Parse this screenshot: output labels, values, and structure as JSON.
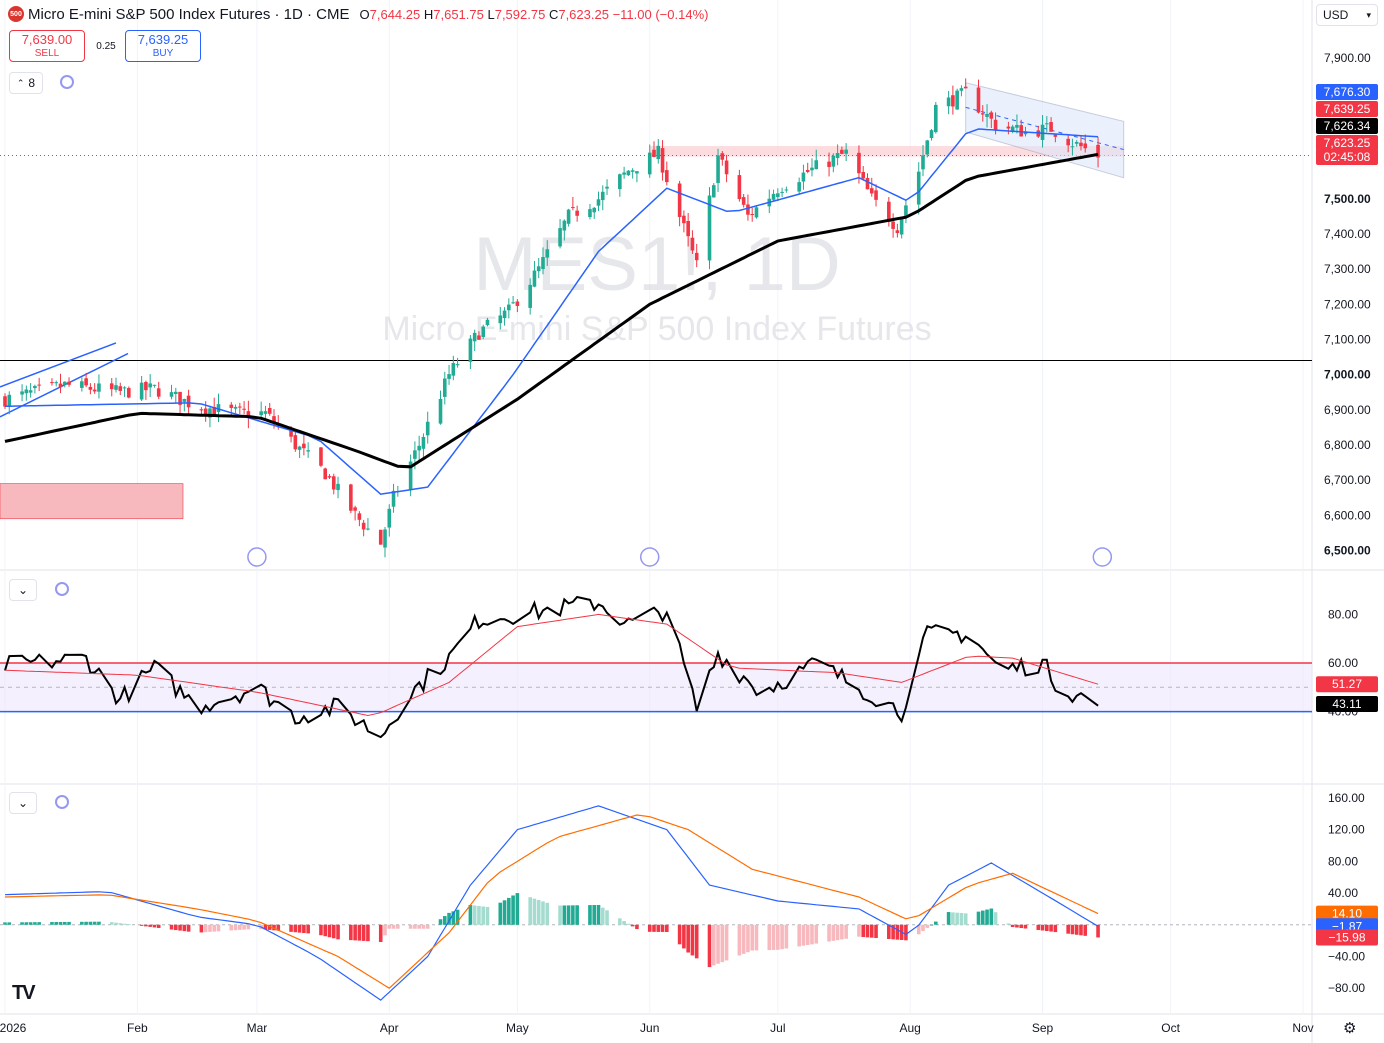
{
  "header": {
    "symbol_badge": "500",
    "title": "Micro E-mini S&P 500 Index Futures · 1D · CME",
    "open_label": "O",
    "open": "7,644.25",
    "high_label": "H",
    "high": "7,651.75",
    "low_label": "L",
    "low": "7,592.75",
    "close_label": "C",
    "close": "7,623.25",
    "change": "−11.00 (−0.14%)"
  },
  "trade": {
    "sell_price": "7,639.00",
    "sell_label": "SELL",
    "spread": "0.25",
    "buy_price": "7,639.25",
    "buy_label": "BUY"
  },
  "controls": {
    "indicator_count": "8",
    "chevron": "⌄"
  },
  "currency": "USD",
  "watermark": {
    "ticker": "MES1!, 1D",
    "name": "Micro E-mini S&P 500 Index Futures"
  },
  "price_axis": {
    "ticks": [
      "7,900.00",
      "7,800.00",
      "7,500.00",
      "7,400.00",
      "7,300.00",
      "7,200.00",
      "7,100.00",
      "7,000.00",
      "6,900.00",
      "6,800.00",
      "6,700.00",
      "6,600.00",
      "6,500.00"
    ],
    "tick_values": [
      7900,
      7800,
      7500,
      7400,
      7300,
      7200,
      7100,
      7000,
      6900,
      6800,
      6700,
      6600,
      6500
    ],
    "bold_ticks": [
      7000,
      7500,
      6500
    ],
    "labels": [
      {
        "text": "7,676.30",
        "color": "#2962ff",
        "value": 7676.3
      },
      {
        "text": "7,639.25",
        "color": "#f23645",
        "value": 7639.25
      },
      {
        "text": "7,626.34",
        "color": "#000000",
        "value": 7626.34
      },
      {
        "text": "7,623.25",
        "color": "#f23645",
        "value": 7623.25
      },
      {
        "text": "02:45:08",
        "color": "#f23645",
        "value": 7623.25
      }
    ]
  },
  "rsi_axis": {
    "ticks": [
      "80.00",
      "60.00",
      "40.00"
    ],
    "tick_values": [
      80,
      60,
      40
    ],
    "labels": [
      {
        "text": "51.27",
        "color": "#f23645",
        "value": 51.27
      },
      {
        "text": "43.11",
        "color": "#000000",
        "value": 43.11
      }
    ]
  },
  "macd_axis": {
    "ticks": [
      "160.00",
      "120.00",
      "80.00",
      "40.00",
      "−40.00",
      "−80.00"
    ],
    "tick_values": [
      160,
      120,
      80,
      40,
      -40,
      -80
    ],
    "labels": [
      {
        "text": "14.10",
        "color": "#ff6d00",
        "value": 14.1
      },
      {
        "text": "−1.87",
        "color": "#2962ff",
        "value": -1.87
      },
      {
        "text": "−15.98",
        "color": "#f23645",
        "value": -15.98
      }
    ]
  },
  "time_axis": {
    "labels": [
      "2026",
      "Feb",
      "Mar",
      "Apr",
      "May",
      "Jun",
      "Jul",
      "Aug",
      "Sep",
      "Oct",
      "Nov"
    ]
  },
  "colors": {
    "up": "#22ab94",
    "down": "#f23645",
    "ma_fast": "#2962ff",
    "ma_slow": "#000000",
    "rsi": "#000000",
    "rsi_ma": "#f23645",
    "macd": "#2962ff",
    "signal": "#ff6d00"
  },
  "chart_data": [
    {
      "type": "candlestick",
      "title": "Micro E-mini S&P 500 Index Futures · 1D · CME",
      "x_range": [
        "2026-01-01",
        "2026-11-01"
      ],
      "ylim": [
        6450,
        7980
      ],
      "anchors": [
        {
          "date": "2026-01-01",
          "close": 6930
        },
        {
          "date": "2026-01-15",
          "close": 6970
        },
        {
          "date": "2026-01-28",
          "close": 6950
        },
        {
          "date": "2026-02-05",
          "close": 6960
        },
        {
          "date": "2026-02-15",
          "close": 6910
        },
        {
          "date": "2026-02-25",
          "close": 6890
        },
        {
          "date": "2026-03-03",
          "close": 6890
        },
        {
          "date": "2026-03-10",
          "close": 6800
        },
        {
          "date": "2026-03-17",
          "close": 6720
        },
        {
          "date": "2026-03-24",
          "close": 6600
        },
        {
          "date": "2026-03-30",
          "close": 6520
        },
        {
          "date": "2026-04-02",
          "close": 6650
        },
        {
          "date": "2026-04-08",
          "close": 6800
        },
        {
          "date": "2026-04-15",
          "close": 7000
        },
        {
          "date": "2026-04-22",
          "close": 7120
        },
        {
          "date": "2026-04-29",
          "close": 7180
        },
        {
          "date": "2026-05-06",
          "close": 7300
        },
        {
          "date": "2026-05-13",
          "close": 7450
        },
        {
          "date": "2026-05-20",
          "close": 7500
        },
        {
          "date": "2026-05-27",
          "close": 7580
        },
        {
          "date": "2026-06-03",
          "close": 7630
        },
        {
          "date": "2026-06-08",
          "close": 7450
        },
        {
          "date": "2026-06-12",
          "close": 7310
        },
        {
          "date": "2026-06-17",
          "close": 7620
        },
        {
          "date": "2026-06-24",
          "close": 7450
        },
        {
          "date": "2026-07-01",
          "close": 7530
        },
        {
          "date": "2026-07-10",
          "close": 7590
        },
        {
          "date": "2026-07-17",
          "close": 7630
        },
        {
          "date": "2026-07-23",
          "close": 7500
        },
        {
          "date": "2026-07-29",
          "close": 7420
        },
        {
          "date": "2026-08-03",
          "close": 7580
        },
        {
          "date": "2026-08-07",
          "close": 7760
        },
        {
          "date": "2026-08-14",
          "close": 7800
        },
        {
          "date": "2026-08-21",
          "close": 7710
        },
        {
          "date": "2026-08-28",
          "close": 7690
        },
        {
          "date": "2026-09-03",
          "close": 7700
        },
        {
          "date": "2026-09-08",
          "close": 7660
        },
        {
          "date": "2026-09-14",
          "close": 7623.25
        }
      ],
      "moving_averages": [
        {
          "color": "#2962ff",
          "anchors": [
            [
              "2026-01-01",
              6910
            ],
            [
              "2026-02-15",
              6920
            ],
            [
              "2026-03-15",
              6820
            ],
            [
              "2026-03-30",
              6660
            ],
            [
              "2026-04-10",
              6680
            ],
            [
              "2026-04-30",
              7000
            ],
            [
              "2026-05-20",
              7350
            ],
            [
              "2026-06-05",
              7530
            ],
            [
              "2026-06-20",
              7460
            ],
            [
              "2026-07-20",
              7560
            ],
            [
              "2026-08-01",
              7490
            ],
            [
              "2026-08-15",
              7700
            ],
            [
              "2026-09-14",
              7676.3
            ]
          ]
        },
        {
          "color": "#000000",
          "anchors": [
            [
              "2026-01-01",
              6810
            ],
            [
              "2026-02-01",
              6890
            ],
            [
              "2026-03-01",
              6880
            ],
            [
              "2026-03-25",
              6780
            ],
            [
              "2026-04-05",
              6730
            ],
            [
              "2026-05-01",
              6930
            ],
            [
              "2026-06-01",
              7200
            ],
            [
              "2026-07-01",
              7380
            ],
            [
              "2026-08-01",
              7450
            ],
            [
              "2026-08-15",
              7560
            ],
            [
              "2026-09-14",
              7626.34
            ]
          ]
        }
      ],
      "horizontal_line": 7040,
      "resistance_zone": [
        7620,
        7650
      ],
      "demand_zone": [
        6590,
        6690
      ]
    },
    {
      "type": "line",
      "title": "RSI",
      "ylim": [
        25,
        95
      ],
      "bands": [
        40,
        60
      ],
      "series": [
        {
          "color": "#000000",
          "anchors": [
            [
              "2026-01-01",
              59
            ],
            [
              "2026-01-20",
              62
            ],
            [
              "2026-01-28",
              45
            ],
            [
              "2026-02-05",
              58
            ],
            [
              "2026-02-15",
              42
            ],
            [
              "2026-03-01",
              50
            ],
            [
              "2026-03-10",
              38
            ],
            [
              "2026-03-20",
              42
            ],
            [
              "2026-03-30",
              30
            ],
            [
              "2026-04-05",
              46
            ],
            [
              "2026-04-15",
              62
            ],
            [
              "2026-04-22",
              78
            ],
            [
              "2026-05-05",
              81
            ],
            [
              "2026-05-20",
              85
            ],
            [
              "2026-05-27",
              76
            ],
            [
              "2026-06-05",
              82
            ],
            [
              "2026-06-12",
              41
            ],
            [
              "2026-06-17",
              64
            ],
            [
              "2026-06-27",
              48
            ],
            [
              "2026-07-10",
              60
            ],
            [
              "2026-07-20",
              50
            ],
            [
              "2026-07-30",
              40
            ],
            [
              "2026-08-05",
              72
            ],
            [
              "2026-08-15",
              72
            ],
            [
              "2026-08-22",
              57
            ],
            [
              "2026-09-01",
              60
            ],
            [
              "2026-09-05",
              50
            ],
            [
              "2026-09-14",
              43.11
            ]
          ]
        },
        {
          "color": "#f23645",
          "anchors": [
            [
              "2026-01-01",
              57
            ],
            [
              "2026-02-01",
              55
            ],
            [
              "2026-03-01",
              48
            ],
            [
              "2026-03-28",
              38
            ],
            [
              "2026-04-15",
              52
            ],
            [
              "2026-05-01",
              75
            ],
            [
              "2026-05-20",
              80
            ],
            [
              "2026-06-05",
              76
            ],
            [
              "2026-06-20",
              58
            ],
            [
              "2026-07-15",
              56
            ],
            [
              "2026-07-30",
              52
            ],
            [
              "2026-08-15",
              63
            ],
            [
              "2026-08-25",
              62
            ],
            [
              "2026-09-14",
              51.27
            ]
          ]
        }
      ]
    },
    {
      "type": "line",
      "title": "MACD",
      "ylim": [
        -110,
        170
      ],
      "series": [
        {
          "color": "#2962ff",
          "anchors": [
            [
              "2026-01-01",
              38
            ],
            [
              "2026-01-25",
              42
            ],
            [
              "2026-02-15",
              10
            ],
            [
              "2026-03-01",
              0
            ],
            [
              "2026-03-15",
              -40
            ],
            [
              "2026-03-30",
              -95
            ],
            [
              "2026-04-10",
              -40
            ],
            [
              "2026-04-20",
              50
            ],
            [
              "2026-05-01",
              120
            ],
            [
              "2026-05-20",
              150
            ],
            [
              "2026-06-05",
              120
            ],
            [
              "2026-06-15",
              50
            ],
            [
              "2026-07-01",
              30
            ],
            [
              "2026-07-20",
              20
            ],
            [
              "2026-08-01",
              -15
            ],
            [
              "2026-08-10",
              50
            ],
            [
              "2026-08-20",
              78
            ],
            [
              "2026-09-01",
              40
            ],
            [
              "2026-09-14",
              -1.87
            ]
          ]
        },
        {
          "color": "#ff6d00",
          "anchors": [
            [
              "2026-01-01",
              35
            ],
            [
              "2026-01-25",
              38
            ],
            [
              "2026-02-15",
              20
            ],
            [
              "2026-03-01",
              5
            ],
            [
              "2026-03-20",
              -40
            ],
            [
              "2026-04-01",
              -80
            ],
            [
              "2026-04-15",
              -10
            ],
            [
              "2026-04-25",
              60
            ],
            [
              "2026-05-10",
              110
            ],
            [
              "2026-05-30",
              140
            ],
            [
              "2026-06-10",
              120
            ],
            [
              "2026-06-25",
              70
            ],
            [
              "2026-07-20",
              35
            ],
            [
              "2026-08-01",
              5
            ],
            [
              "2026-08-15",
              50
            ],
            [
              "2026-08-25",
              65
            ],
            [
              "2026-09-14",
              14.1
            ]
          ]
        }
      ],
      "histogram_last": -15.98
    }
  ]
}
